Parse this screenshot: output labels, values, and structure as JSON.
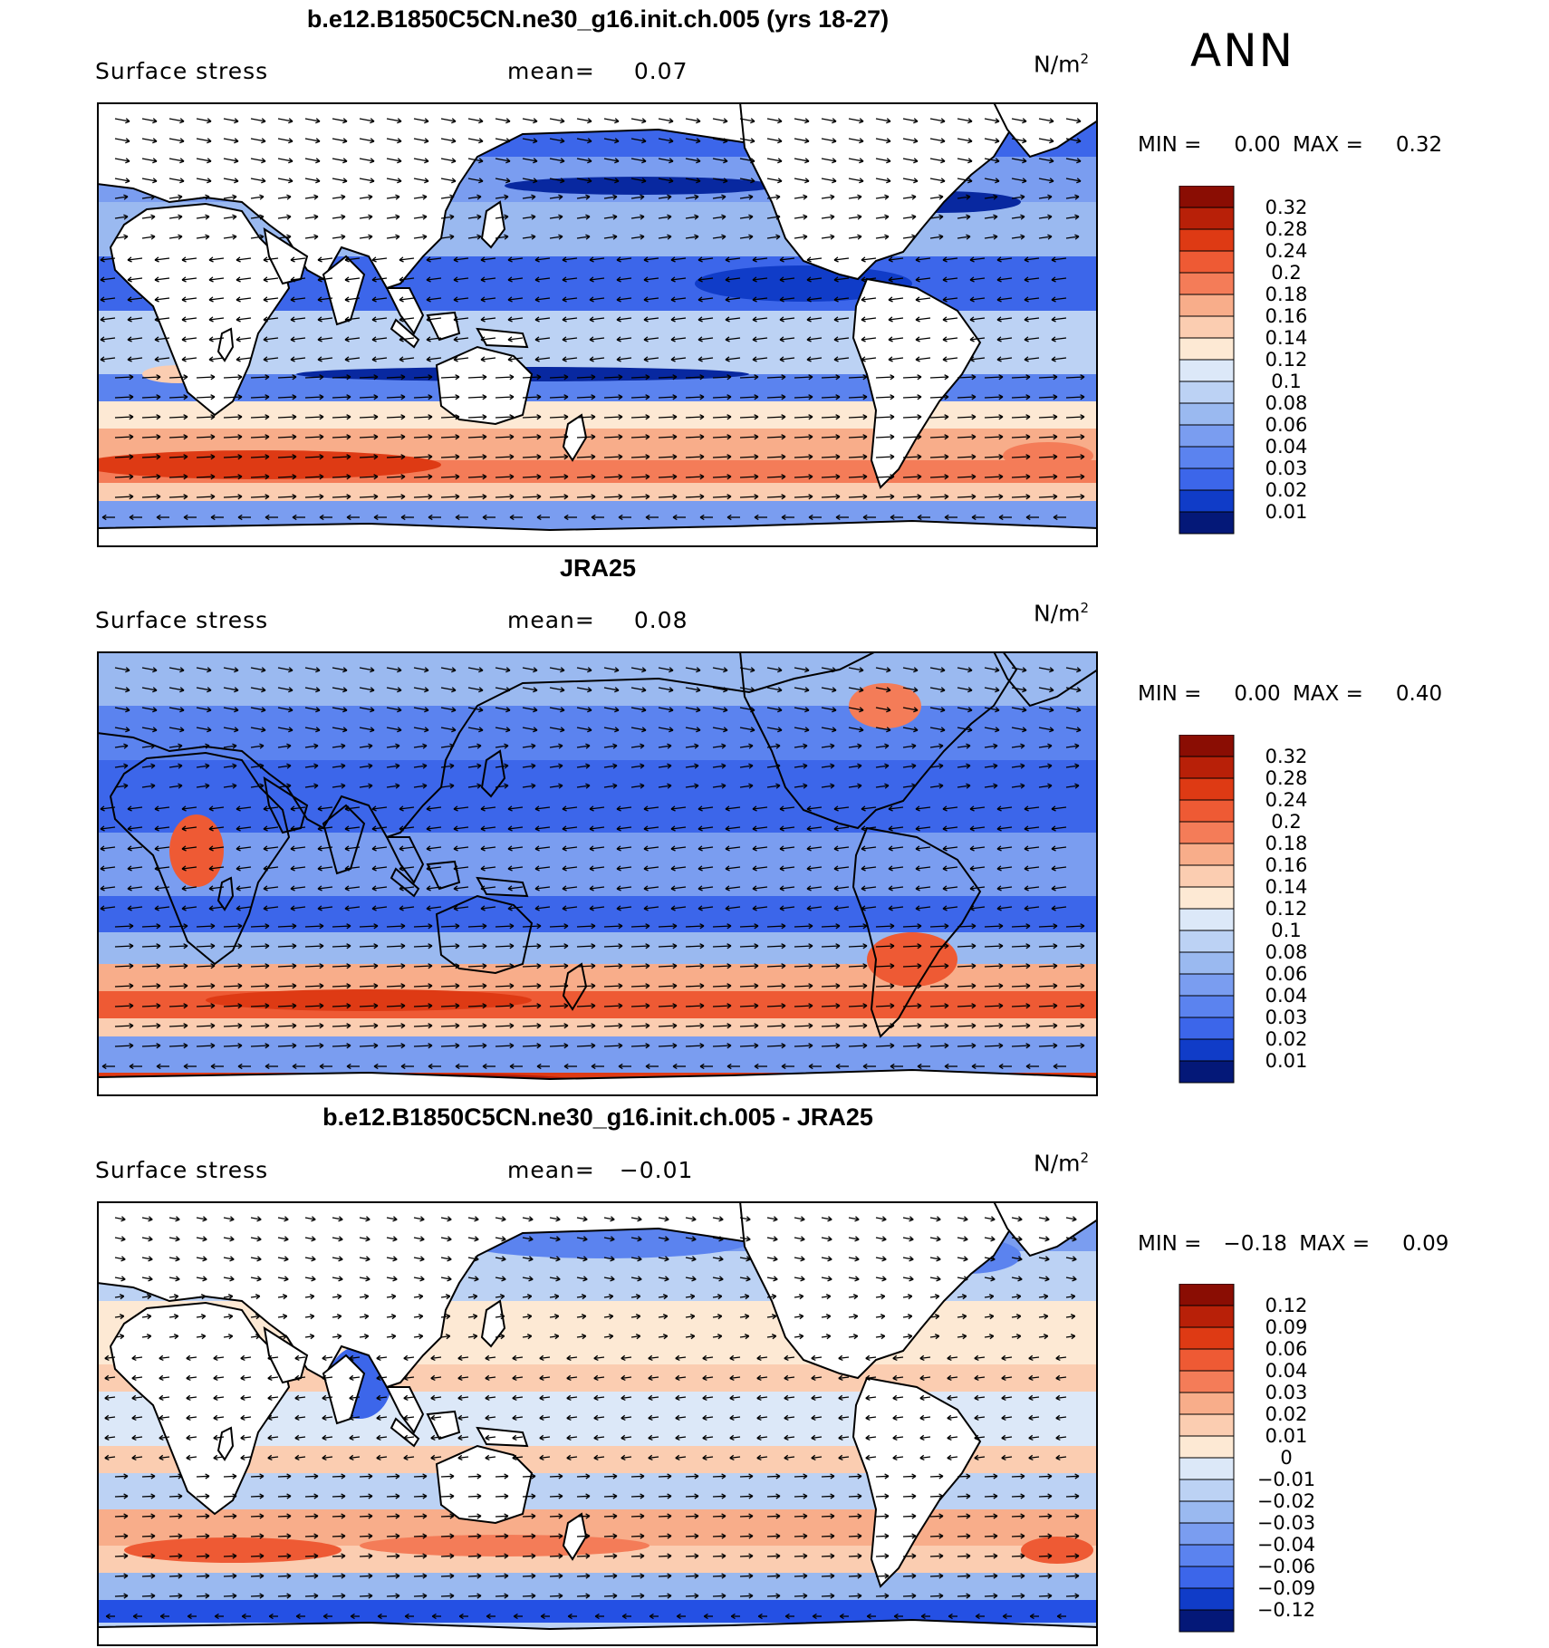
{
  "season": "ANN",
  "units_base": "N/m",
  "units_exp": "2",
  "min_label": "MIN =",
  "max_label": "MAX =",
  "mean_label": "mean=",
  "colors": {
    "pos": [
      "#fde9d4",
      "#fbcdb1",
      "#f8ad8a",
      "#f47c58",
      "#ee5a34",
      "#de3a14",
      "#b82008",
      "#8a0d03"
    ],
    "neg": [
      "#dce8f8",
      "#bcd2f4",
      "#9ab9f0",
      "#7a9df0",
      "#5b83ef",
      "#3c66ea",
      "#2450e4",
      "#103cc8",
      "#0828a0",
      "#041878"
    ],
    "land": "#ffffff",
    "coast": "#000000"
  },
  "panels": [
    {
      "title": "b.e12.B1850C5CN.ne30_g16.init.ch.005 (yrs 18-27)",
      "subtitle": "Surface stress",
      "mean": "0.07",
      "min": "0.00",
      "max": "0.32",
      "colorbar_labels": [
        "0.32",
        "0.28",
        "0.24",
        "0.2",
        "0.18",
        "0.16",
        "0.14",
        "0.12",
        "0.1",
        "0.08",
        "0.06",
        "0.04",
        "0.03",
        "0.02",
        "0.01"
      ]
    },
    {
      "title": "JRA25",
      "subtitle": "Surface stress",
      "mean": "0.08",
      "min": "0.00",
      "max": "0.40",
      "colorbar_labels": [
        "0.32",
        "0.28",
        "0.24",
        "0.2",
        "0.18",
        "0.16",
        "0.14",
        "0.12",
        "0.1",
        "0.08",
        "0.06",
        "0.04",
        "0.03",
        "0.02",
        "0.01"
      ]
    },
    {
      "title": "b.e12.B1850C5CN.ne30_g16.init.ch.005 - JRA25",
      "subtitle": "Surface stress",
      "mean": "−0.01",
      "min": "−0.18",
      "max": "0.09",
      "colorbar_labels": [
        "0.12",
        "0.09",
        "0.06",
        "0.04",
        "0.03",
        "0.02",
        "0.01",
        "0",
        "−0.01",
        "−0.02",
        "−0.03",
        "−0.04",
        "−0.06",
        "−0.09",
        "−0.12"
      ]
    }
  ],
  "chart_data": [
    {
      "type": "heatmap",
      "title": "b.e12.B1850C5CN.ne30_g16.init.ch.005 (yrs 18-27)",
      "variable": "Surface stress",
      "units": "N/m2",
      "season": "ANN",
      "mean": 0.07,
      "min": 0.0,
      "max": 0.32,
      "levels": [
        0.01,
        0.02,
        0.03,
        0.04,
        0.06,
        0.08,
        0.1,
        0.12,
        0.14,
        0.16,
        0.18,
        0.2,
        0.24,
        0.28,
        0.32
      ],
      "overlay": "wind stress vectors",
      "features": [
        "strong westerly band ~45-55S (0.2-0.3)",
        "trade wind regions 0.06-0.1",
        "weak equatorial stress <0.03"
      ]
    },
    {
      "type": "heatmap",
      "title": "JRA25",
      "variable": "Surface stress",
      "units": "N/m2",
      "season": "ANN",
      "mean": 0.08,
      "min": 0.0,
      "max": 0.4,
      "levels": [
        0.01,
        0.02,
        0.03,
        0.04,
        0.06,
        0.08,
        0.1,
        0.12,
        0.14,
        0.16,
        0.18,
        0.2,
        0.24,
        0.28,
        0.32
      ],
      "overlay": "wind stress vectors",
      "features": [
        "strong westerly band ~50S (0.2-0.32)",
        "high stress over Antarctic coast",
        "land stress shown over continents"
      ]
    },
    {
      "type": "heatmap",
      "title": "b.e12.B1850C5CN.ne30_g16.init.ch.005 - JRA25",
      "variable": "Surface stress",
      "units": "N/m2",
      "season": "ANN",
      "mean": -0.01,
      "min": -0.18,
      "max": 0.09,
      "levels": [
        -0.12,
        -0.09,
        -0.06,
        -0.04,
        -0.03,
        -0.02,
        -0.01,
        0,
        0.01,
        0.02,
        0.03,
        0.04,
        0.06,
        0.09,
        0.12
      ],
      "overlay": "difference vectors",
      "features": [
        "positive bias ~45S band",
        "negative bias near 60S and North Pacific",
        "positive subtropical biases"
      ]
    }
  ]
}
